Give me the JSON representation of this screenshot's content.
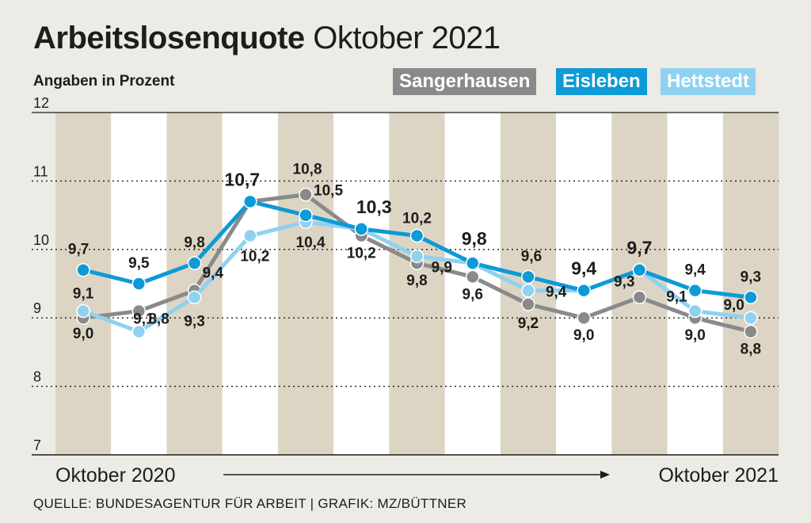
{
  "header": {
    "title_bold": "Arbeitslosenquote",
    "title_rest": " Oktober 2021",
    "subtitle": "Angaben in Prozent"
  },
  "legend": {
    "sangerhausen": "Sangerhausen",
    "eisleben": "Eisleben",
    "hettstedt": "Hettstedt"
  },
  "footer": {
    "source": "QUELLE: BUNDESAGENTUR FÜR ARBEIT | GRAFIK: MZ/BÜTTNER"
  },
  "chart_data": {
    "type": "line",
    "title": "Arbeitslosenquote Oktober 2021",
    "subtitle": "Angaben in Prozent",
    "ylim": [
      7,
      12
    ],
    "yticks": [
      "7",
      "8",
      "9",
      "10",
      "11",
      "12"
    ],
    "x_start_label": "Oktober 2020",
    "x_end_label": "Oktober 2021",
    "grid": "dotted horizontal lines, alternating beige and white month columns",
    "legend_position": "top-right",
    "months": 13,
    "series": [
      {
        "name": "Sangerhausen",
        "color": "#8a8a8a",
        "values": [
          9.0,
          9.1,
          9.4,
          10.7,
          10.8,
          10.2,
          9.8,
          9.6,
          9.2,
          9.0,
          9.3,
          9.0,
          8.8
        ],
        "labels": [
          "9,0",
          "9,1",
          "9,4",
          "",
          "10,8",
          "10,2",
          "9,8",
          "9,6",
          "9,2",
          "9,0",
          "9,3",
          "9,0",
          "8,8"
        ]
      },
      {
        "name": "Eisleben",
        "color": "#0d9ad6",
        "values": [
          9.7,
          9.5,
          9.8,
          10.7,
          10.5,
          10.3,
          10.2,
          9.8,
          9.6,
          9.4,
          9.7,
          9.4,
          9.3
        ],
        "labels": [
          "9,7",
          "9,5",
          "9,8",
          "10,7",
          "10,5",
          "10,3",
          "10,2",
          "9,8",
          "9,6",
          "9,4",
          "9,7",
          "9,4",
          "9,3"
        ]
      },
      {
        "name": "Hettstedt",
        "color": "#8fd1f0",
        "values": [
          9.1,
          8.8,
          9.3,
          10.2,
          10.4,
          10.3,
          9.9,
          9.8,
          9.4,
          9.4,
          9.7,
          9.1,
          9.0
        ],
        "labels": [
          "9,1",
          "8,8",
          "9,3",
          "10,2",
          "10,4",
          "",
          "9,9",
          "",
          "9,4",
          "",
          "",
          "9,1",
          "9,0"
        ]
      }
    ]
  }
}
